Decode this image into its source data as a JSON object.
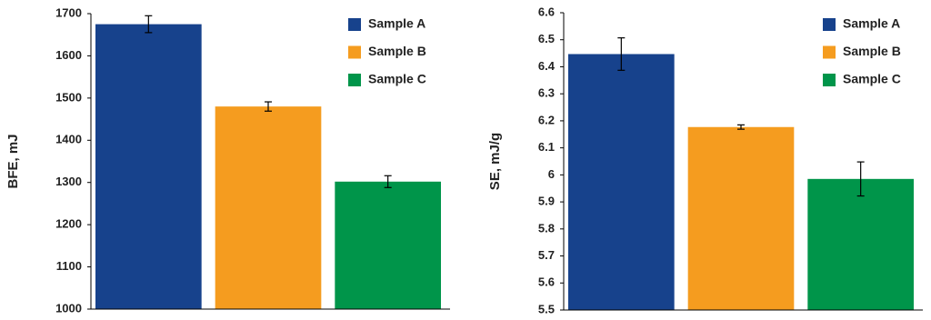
{
  "chart_data": [
    {
      "type": "bar",
      "ylabel": "BFE, mJ",
      "categories": [
        null
      ],
      "series": [
        {
          "name": "Sample A",
          "color": "#17428c",
          "values": [
            1675
          ],
          "errors": [
            20
          ]
        },
        {
          "name": "Sample B",
          "color": "#f59c1f",
          "values": [
            1480
          ],
          "errors": [
            11
          ]
        },
        {
          "name": "Sample C",
          "color": "#00954a",
          "values": [
            1302
          ],
          "errors": [
            14
          ]
        }
      ],
      "ylim": [
        1000,
        1700
      ],
      "yticks": [
        1000,
        1100,
        1200,
        1300,
        1400,
        1500,
        1600,
        1700
      ],
      "grid": false,
      "legend": "upper right"
    },
    {
      "type": "bar",
      "ylabel": "SE, mJ/g",
      "categories": [
        null
      ],
      "series": [
        {
          "name": "Sample A",
          "color": "#17428c",
          "values": [
            6.447
          ],
          "errors": [
            0.06
          ]
        },
        {
          "name": "Sample B",
          "color": "#f59c1f",
          "values": [
            6.177
          ],
          "errors": [
            0.008
          ]
        },
        {
          "name": "Sample C",
          "color": "#00954a",
          "values": [
            5.985
          ],
          "errors": [
            0.063
          ]
        }
      ],
      "ylim": [
        5.5,
        6.6
      ],
      "yticks": [
        5.5,
        5.6,
        5.7,
        5.8,
        5.9,
        6,
        6.1,
        6.2,
        6.3,
        6.4,
        6.5,
        6.6
      ],
      "grid": false,
      "legend": "upper right"
    }
  ]
}
